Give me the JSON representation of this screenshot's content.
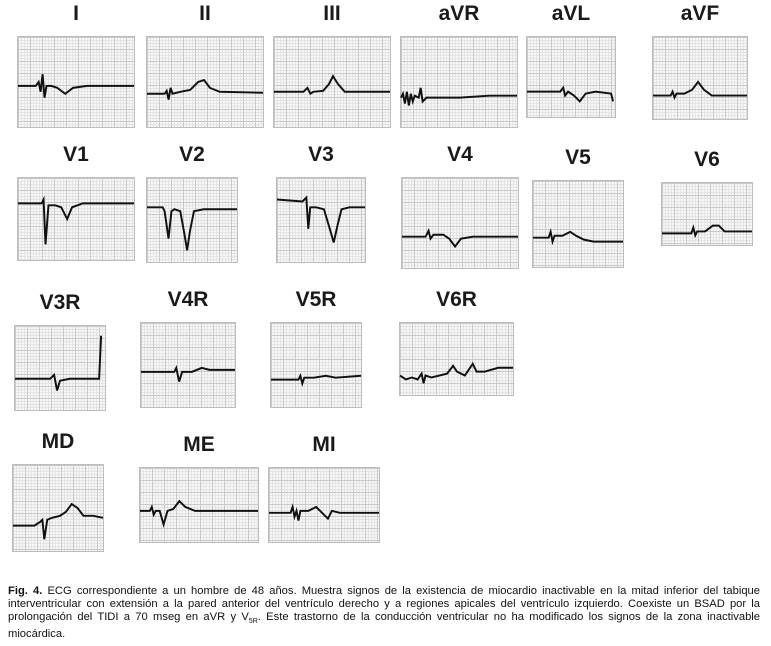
{
  "leads": [
    {
      "id": "I",
      "label": "I"
    },
    {
      "id": "II",
      "label": "II"
    },
    {
      "id": "III",
      "label": "III"
    },
    {
      "id": "aVR",
      "label": "aVR"
    },
    {
      "id": "aVL",
      "label": "aVL"
    },
    {
      "id": "aVF",
      "label": "aVF"
    },
    {
      "id": "V1",
      "label": "V1"
    },
    {
      "id": "V2",
      "label": "V2"
    },
    {
      "id": "V3",
      "label": "V3"
    },
    {
      "id": "V4",
      "label": "V4"
    },
    {
      "id": "V5",
      "label": "V5"
    },
    {
      "id": "V6",
      "label": "V6"
    },
    {
      "id": "V3R",
      "label": "V3R"
    },
    {
      "id": "V4R",
      "label": "V4R"
    },
    {
      "id": "V5R",
      "label": "V5R"
    },
    {
      "id": "V6R",
      "label": "V6R"
    },
    {
      "id": "MD",
      "label": "MD"
    },
    {
      "id": "ME",
      "label": "ME"
    },
    {
      "id": "MI",
      "label": "MI"
    }
  ],
  "caption": {
    "fig_label": "Fig. 4.",
    "text_part1": " ECG correspondiente a un hombre de 48 años. Muestra signos de la existencia de miocardio inactivable en la mitad inferior del tabique interventricular con extensión a la pared anterior del ventrículo derecho y a regiones apicales del ventrículo izquierdo. Coexiste un BSAD por la prolongación del TIDI a 70 mseg en aVR y V",
    "subscript": "5R",
    "text_part2": ". Este trastorno de la conducción ventricular no ha modificado los signos de la zona inactivable miocárdica."
  }
}
